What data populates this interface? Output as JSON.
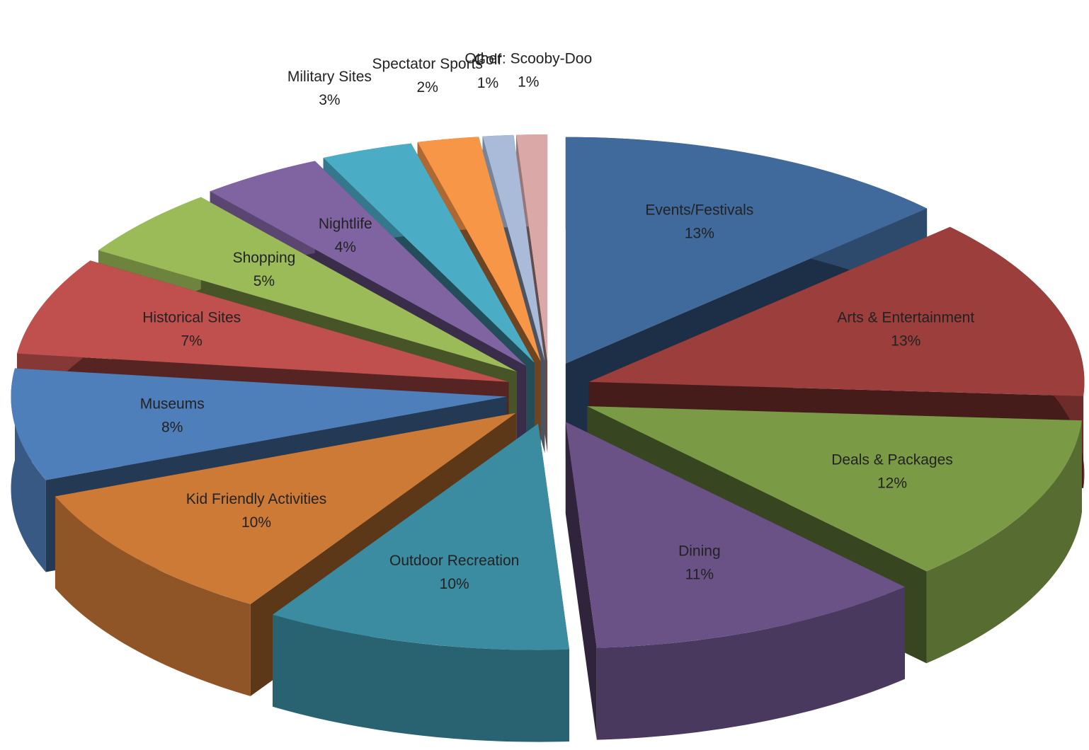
{
  "chart_data": {
    "type": "pie3d",
    "categories": [
      "Events/Festivals",
      "Arts & Entertainment",
      "Deals & Packages",
      "Dining",
      "Outdoor Recreation",
      "Kid Friendly Activities",
      "Museums",
      "Historical Sites",
      "Shopping",
      "Nightlife",
      "Military Sites",
      "Spectator Sports",
      "Golf",
      "Other: Scooby-Doo"
    ],
    "values": [
      13,
      13,
      12,
      11,
      10,
      10,
      8,
      7,
      5,
      4,
      3,
      2,
      1,
      1
    ],
    "value_labels": [
      "13%",
      "13%",
      "12%",
      "11%",
      "10%",
      "10%",
      "8%",
      "7%",
      "5%",
      "4%",
      "3%",
      "2%",
      "1%",
      "1%"
    ],
    "colors": [
      "#40699c",
      "#9b3e3c",
      "#7b9a46",
      "#6a5186",
      "#3b8ca0",
      "#cc7a36",
      "#4e7fbb",
      "#c0504d",
      "#9bbb59",
      "#8064a2",
      "#4bacc6",
      "#f79646",
      "#a9bbd9",
      "#dba8a8"
    ]
  }
}
